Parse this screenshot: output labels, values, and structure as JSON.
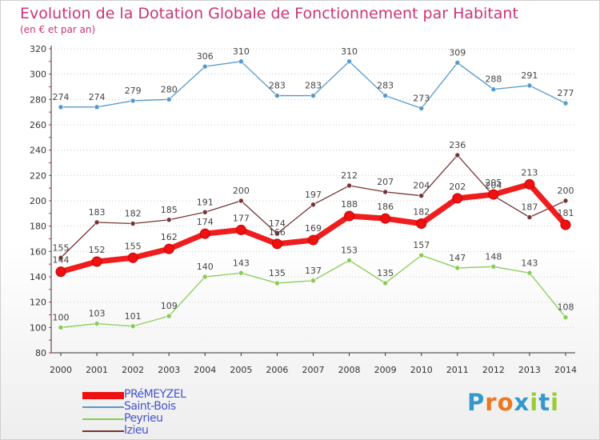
{
  "title": "Evolution de la Dotation Globale de Fonctionnement par Habitant",
  "subtitle": "(en € et par an)",
  "brand": {
    "name": "Proxiti",
    "letter_colors": [
      "#3399cc",
      "#ee7722",
      "#ee7722",
      "#3399cc",
      "#99cc33",
      "#3399cc",
      "#99cc33"
    ]
  },
  "chart_data": {
    "type": "line",
    "title": "Evolution de la Dotation Globale de Fonctionnement par Habitant",
    "subtitle": "(en € et par an)",
    "xlabel": "",
    "ylabel": "",
    "x": [
      "2000",
      "2001",
      "2002",
      "2003",
      "2004",
      "2005",
      "2006",
      "2007",
      "2008",
      "2009",
      "2010",
      "2011",
      "2012",
      "2013",
      "2014"
    ],
    "ylim": [
      80,
      320
    ],
    "yticks": [
      80,
      100,
      120,
      140,
      160,
      180,
      200,
      220,
      240,
      260,
      280,
      300,
      320
    ],
    "grid": "horizontal dotted",
    "legend_position": "bottom-left",
    "series": [
      {
        "name": "Saint-Bois",
        "color": "#5599cc",
        "values": [
          274,
          274,
          279,
          280,
          306,
          310,
          283,
          283,
          310,
          283,
          273,
          309,
          288,
          291,
          277
        ]
      },
      {
        "name": "Peyrieu",
        "color": "#88cc55",
        "values": [
          100,
          103,
          101,
          109,
          140,
          143,
          135,
          137,
          153,
          135,
          157,
          147,
          148,
          143,
          108
        ]
      },
      {
        "name": "Izieu",
        "color": "#773333",
        "values": [
          155,
          183,
          182,
          185,
          191,
          200,
          174,
          197,
          212,
          207,
          204,
          236,
          204,
          187,
          200
        ]
      },
      {
        "name": "PRéMEYZEL",
        "color": "#ee1111",
        "values": [
          144,
          152,
          155,
          162,
          174,
          177,
          166,
          169,
          188,
          186,
          182,
          202,
          205,
          213,
          181
        ]
      }
    ],
    "legend_order": [
      "PRéMEYZEL",
      "Saint-Bois",
      "Peyrieu",
      "Izieu"
    ]
  }
}
